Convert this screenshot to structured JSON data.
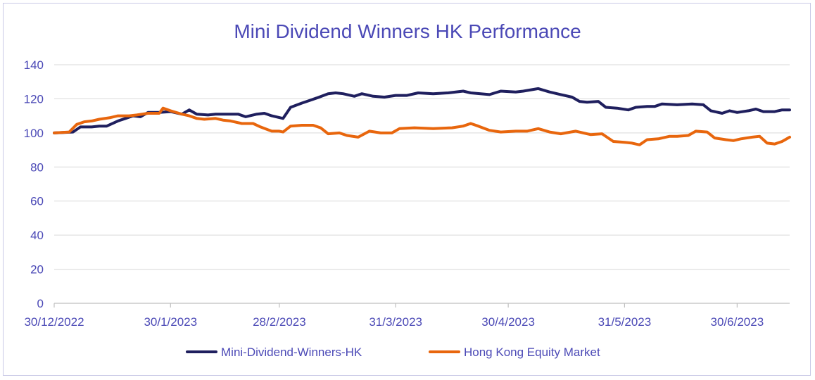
{
  "chart_data": {
    "type": "line",
    "title": "Mini Dividend Winners HK Performance",
    "xlabel": "",
    "ylabel": "",
    "ylim": [
      0,
      140
    ],
    "yticks": [
      0,
      20,
      40,
      60,
      80,
      100,
      120,
      140
    ],
    "xticks": [
      "30/12/2022",
      "30/1/2023",
      "28/2/2023",
      "31/3/2023",
      "30/4/2023",
      "31/5/2023",
      "30/6/2023"
    ],
    "x_range": [
      "2022-12-30",
      "2023-07-14"
    ],
    "grid": "horizontal",
    "legend": "bottom",
    "colors": {
      "grid": "#d9d9d9",
      "axis": "#bfbfbf",
      "text": "#4b49b6"
    },
    "series": [
      {
        "name": "Mini-Dividend-Winners-HK",
        "color": "#1f1f5e",
        "points": [
          [
            "2022-12-30",
            100
          ],
          [
            "2023-01-04",
            100.5
          ],
          [
            "2023-01-06",
            103.5
          ],
          [
            "2023-01-09",
            103.5
          ],
          [
            "2023-01-11",
            104
          ],
          [
            "2023-01-13",
            104
          ],
          [
            "2023-01-16",
            107
          ],
          [
            "2023-01-18",
            108.5
          ],
          [
            "2023-01-20",
            110
          ],
          [
            "2023-01-22",
            109.5
          ],
          [
            "2023-01-24",
            112
          ],
          [
            "2023-01-27",
            112
          ],
          [
            "2023-01-30",
            112.5
          ],
          [
            "2023-02-02",
            111
          ],
          [
            "2023-02-04",
            113.5
          ],
          [
            "2023-02-06",
            111
          ],
          [
            "2023-02-09",
            110.5
          ],
          [
            "2023-02-11",
            111
          ],
          [
            "2023-02-14",
            111
          ],
          [
            "2023-02-17",
            111
          ],
          [
            "2023-02-19",
            109.5
          ],
          [
            "2023-02-22",
            111
          ],
          [
            "2023-02-24",
            111.5
          ],
          [
            "2023-02-26",
            110
          ],
          [
            "2023-03-01",
            108.5
          ],
          [
            "2023-03-03",
            115
          ],
          [
            "2023-03-06",
            117.5
          ],
          [
            "2023-03-08",
            119
          ],
          [
            "2023-03-10",
            120.5
          ],
          [
            "2023-03-13",
            123
          ],
          [
            "2023-03-15",
            123.5
          ],
          [
            "2023-03-17",
            123
          ],
          [
            "2023-03-20",
            121.5
          ],
          [
            "2023-03-22",
            123
          ],
          [
            "2023-03-25",
            121.5
          ],
          [
            "2023-03-28",
            121
          ],
          [
            "2023-03-31",
            122
          ],
          [
            "2023-04-03",
            122
          ],
          [
            "2023-04-06",
            123.5
          ],
          [
            "2023-04-10",
            123
          ],
          [
            "2023-04-14",
            123.5
          ],
          [
            "2023-04-18",
            124.5
          ],
          [
            "2023-04-20",
            123.5
          ],
          [
            "2023-04-25",
            122.5
          ],
          [
            "2023-04-28",
            124.5
          ],
          [
            "2023-05-02",
            124
          ],
          [
            "2023-05-04",
            124.5
          ],
          [
            "2023-05-08",
            126
          ],
          [
            "2023-05-11",
            124
          ],
          [
            "2023-05-14",
            122.5
          ],
          [
            "2023-05-17",
            121
          ],
          [
            "2023-05-19",
            118.5
          ],
          [
            "2023-05-21",
            118
          ],
          [
            "2023-05-24",
            118.5
          ],
          [
            "2023-05-26",
            115
          ],
          [
            "2023-05-29",
            114.5
          ],
          [
            "2023-06-01",
            113.5
          ],
          [
            "2023-06-03",
            115
          ],
          [
            "2023-06-06",
            115.5
          ],
          [
            "2023-06-08",
            115.5
          ],
          [
            "2023-06-10",
            117
          ],
          [
            "2023-06-14",
            116.5
          ],
          [
            "2023-06-18",
            117
          ],
          [
            "2023-06-21",
            116.5
          ],
          [
            "2023-06-23",
            113
          ],
          [
            "2023-06-26",
            111.5
          ],
          [
            "2023-06-28",
            113
          ],
          [
            "2023-06-30",
            112
          ],
          [
            "2023-07-03",
            113
          ],
          [
            "2023-07-05",
            114
          ],
          [
            "2023-07-07",
            112.5
          ],
          [
            "2023-07-10",
            112.5
          ],
          [
            "2023-07-12",
            113.5
          ],
          [
            "2023-07-14",
            113.5
          ]
        ]
      },
      {
        "name": "Hong Kong Equity Market",
        "color": "#e8660d",
        "points": [
          [
            "2022-12-30",
            100
          ],
          [
            "2023-01-03",
            100.5
          ],
          [
            "2023-01-05",
            105
          ],
          [
            "2023-01-07",
            106.5
          ],
          [
            "2023-01-09",
            107
          ],
          [
            "2023-01-11",
            108
          ],
          [
            "2023-01-14",
            109
          ],
          [
            "2023-01-16",
            110
          ],
          [
            "2023-01-19",
            110
          ],
          [
            "2023-01-21",
            110.5
          ],
          [
            "2023-01-24",
            111.5
          ],
          [
            "2023-01-27",
            111.5
          ],
          [
            "2023-01-28",
            114.5
          ],
          [
            "2023-01-30",
            113
          ],
          [
            "2023-02-02",
            111
          ],
          [
            "2023-02-04",
            110
          ],
          [
            "2023-02-06",
            108.5
          ],
          [
            "2023-02-08",
            108
          ],
          [
            "2023-02-11",
            108.5
          ],
          [
            "2023-02-13",
            107.5
          ],
          [
            "2023-02-15",
            107
          ],
          [
            "2023-02-18",
            105.5
          ],
          [
            "2023-02-21",
            105.5
          ],
          [
            "2023-02-23",
            103.5
          ],
          [
            "2023-02-26",
            101
          ],
          [
            "2023-02-28",
            101
          ],
          [
            "2023-03-01",
            100.5
          ],
          [
            "2023-03-03",
            104
          ],
          [
            "2023-03-06",
            104.5
          ],
          [
            "2023-03-09",
            104.5
          ],
          [
            "2023-03-11",
            103
          ],
          [
            "2023-03-13",
            99.5
          ],
          [
            "2023-03-16",
            100
          ],
          [
            "2023-03-18",
            98.5
          ],
          [
            "2023-03-21",
            97.5
          ],
          [
            "2023-03-24",
            101
          ],
          [
            "2023-03-27",
            100
          ],
          [
            "2023-03-30",
            100
          ],
          [
            "2023-04-01",
            102.5
          ],
          [
            "2023-04-05",
            103
          ],
          [
            "2023-04-10",
            102.5
          ],
          [
            "2023-04-15",
            103
          ],
          [
            "2023-04-18",
            104
          ],
          [
            "2023-04-20",
            105.5
          ],
          [
            "2023-04-22",
            104
          ],
          [
            "2023-04-25",
            101.5
          ],
          [
            "2023-04-28",
            100.5
          ],
          [
            "2023-05-02",
            101
          ],
          [
            "2023-05-05",
            101
          ],
          [
            "2023-05-08",
            102.5
          ],
          [
            "2023-05-11",
            100.5
          ],
          [
            "2023-05-14",
            99.5
          ],
          [
            "2023-05-18",
            101
          ],
          [
            "2023-05-20",
            100
          ],
          [
            "2023-05-22",
            99
          ],
          [
            "2023-05-25",
            99.5
          ],
          [
            "2023-05-28",
            95
          ],
          [
            "2023-05-31",
            94.5
          ],
          [
            "2023-06-02",
            94
          ],
          [
            "2023-06-04",
            93
          ],
          [
            "2023-06-06",
            96
          ],
          [
            "2023-06-09",
            96.5
          ],
          [
            "2023-06-12",
            98
          ],
          [
            "2023-06-14",
            98
          ],
          [
            "2023-06-17",
            98.5
          ],
          [
            "2023-06-19",
            101
          ],
          [
            "2023-06-22",
            100.5
          ],
          [
            "2023-06-24",
            97
          ],
          [
            "2023-06-27",
            96
          ],
          [
            "2023-06-29",
            95.5
          ],
          [
            "2023-07-01",
            96.5
          ],
          [
            "2023-07-04",
            97.5
          ],
          [
            "2023-07-06",
            98
          ],
          [
            "2023-07-08",
            94
          ],
          [
            "2023-07-10",
            93.5
          ],
          [
            "2023-07-12",
            95
          ],
          [
            "2023-07-14",
            97.5
          ]
        ]
      }
    ]
  }
}
